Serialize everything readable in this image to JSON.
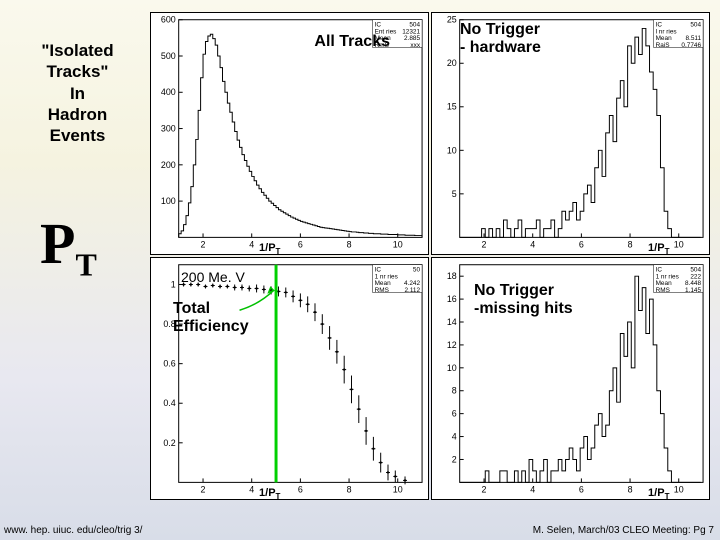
{
  "leftText": {
    "l1": "\"Isolated",
    "l2": "Tracks\"",
    "l3": "In",
    "l4": "Hadron",
    "l5": "Events"
  },
  "ptLabel": {
    "main": "P",
    "sub": "T"
  },
  "footer": {
    "left": "www. hep. uiuc. edu/cleo/trig 3/",
    "right": "M. Selen, March/03 CLEO Meeting: Pg 7"
  },
  "axisLabel": {
    "text": "1/P",
    "sub": "T"
  },
  "annotations": {
    "tl": "All Tracks",
    "tr_l1": "No Trigger",
    "tr_l2": "- hardware",
    "bl_top": "200 Me. V",
    "bl_l1": "Total",
    "bl_l2": "Efficiency",
    "br_l1": "No Trigger",
    "br_l2": "-missing hits"
  },
  "plotTL": {
    "type": "histogram",
    "xlim": [
      1,
      11
    ],
    "ylim": [
      0,
      600
    ],
    "xticks": [
      2,
      4,
      6,
      8,
      10
    ],
    "yticks": [
      100,
      200,
      300,
      400,
      500,
      600
    ],
    "bg": "#ffffff",
    "line": "#000000",
    "binWidth": 0.1,
    "values": [
      10,
      18,
      35,
      60,
      95,
      140,
      200,
      270,
      350,
      440,
      505,
      540,
      555,
      560,
      548,
      530,
      500,
      468,
      430,
      400,
      370,
      345,
      318,
      292,
      268,
      248,
      228,
      212,
      196,
      182,
      168,
      156,
      144,
      134,
      124,
      116,
      108,
      100,
      94,
      88,
      82,
      76,
      72,
      68,
      64,
      60,
      56,
      53,
      50,
      47,
      44,
      42,
      40,
      38,
      36,
      34,
      32,
      30,
      28,
      27,
      26,
      25,
      24,
      23,
      22,
      21,
      20,
      19,
      18,
      17,
      16,
      15,
      15,
      14,
      13,
      13,
      12,
      12,
      11,
      11,
      10,
      10,
      10,
      9,
      9,
      9,
      8,
      8,
      8,
      8,
      7,
      7,
      7,
      6,
      6,
      6,
      6,
      5,
      5,
      5
    ],
    "stats": [
      "IC",
      "504",
      "Ent ries",
      "12321",
      "Mean",
      "2.885",
      "RmS",
      "xxx"
    ]
  },
  "plotTR": {
    "type": "histogram",
    "xlim": [
      1,
      11
    ],
    "ylim": [
      0,
      25
    ],
    "xticks": [
      2,
      4,
      6,
      8,
      10
    ],
    "yticks": [
      5,
      10,
      15,
      20,
      25
    ],
    "bg": "#ffffff",
    "line": "#000000",
    "binWidth": 0.15,
    "values": [
      0,
      0,
      0,
      0,
      0,
      0,
      1,
      0,
      1,
      0,
      1,
      0,
      2,
      1,
      0,
      1,
      2,
      0,
      1,
      1,
      1,
      2,
      0,
      1,
      1,
      2,
      0,
      1,
      3,
      2,
      3,
      4,
      2,
      3,
      5,
      6,
      4,
      8,
      10,
      7,
      12,
      14,
      11,
      16,
      18,
      15,
      22,
      20,
      23,
      21,
      24,
      22,
      19,
      17,
      14,
      8,
      3,
      1,
      0,
      0,
      0,
      0,
      0,
      0,
      0,
      0
    ],
    "stats": [
      "IC",
      "504",
      "l nr ries",
      "",
      "Mean",
      "8.511",
      "RaiS",
      "0.7746"
    ]
  },
  "plotBL": {
    "type": "efficiency",
    "xlim": [
      1,
      11
    ],
    "ylim": [
      0,
      1.1
    ],
    "xticks": [
      2,
      4,
      6,
      8,
      10
    ],
    "yticks": [
      0.2,
      0.4,
      0.6,
      0.8,
      1
    ],
    "bg": "#ffffff",
    "line": "#000000",
    "vlineX": 5.0,
    "vlineColor": "#00d000",
    "points": [
      {
        "x": 1.2,
        "y": 1.0,
        "e": 0.01
      },
      {
        "x": 1.5,
        "y": 1.0,
        "e": 0.01
      },
      {
        "x": 1.8,
        "y": 1.0,
        "e": 0.01
      },
      {
        "x": 2.1,
        "y": 0.99,
        "e": 0.01
      },
      {
        "x": 2.4,
        "y": 0.995,
        "e": 0.01
      },
      {
        "x": 2.7,
        "y": 0.99,
        "e": 0.01
      },
      {
        "x": 3.0,
        "y": 0.99,
        "e": 0.01
      },
      {
        "x": 3.3,
        "y": 0.985,
        "e": 0.015
      },
      {
        "x": 3.6,
        "y": 0.985,
        "e": 0.015
      },
      {
        "x": 3.9,
        "y": 0.98,
        "e": 0.015
      },
      {
        "x": 4.2,
        "y": 0.98,
        "e": 0.02
      },
      {
        "x": 4.5,
        "y": 0.975,
        "e": 0.02
      },
      {
        "x": 4.8,
        "y": 0.97,
        "e": 0.02
      },
      {
        "x": 5.1,
        "y": 0.965,
        "e": 0.025
      },
      {
        "x": 5.4,
        "y": 0.96,
        "e": 0.025
      },
      {
        "x": 5.7,
        "y": 0.94,
        "e": 0.03
      },
      {
        "x": 6.0,
        "y": 0.92,
        "e": 0.035
      },
      {
        "x": 6.3,
        "y": 0.9,
        "e": 0.04
      },
      {
        "x": 6.6,
        "y": 0.86,
        "e": 0.045
      },
      {
        "x": 6.9,
        "y": 0.8,
        "e": 0.05
      },
      {
        "x": 7.2,
        "y": 0.73,
        "e": 0.06
      },
      {
        "x": 7.5,
        "y": 0.66,
        "e": 0.06
      },
      {
        "x": 7.8,
        "y": 0.57,
        "e": 0.07
      },
      {
        "x": 8.1,
        "y": 0.47,
        "e": 0.07
      },
      {
        "x": 8.4,
        "y": 0.37,
        "e": 0.07
      },
      {
        "x": 8.7,
        "y": 0.26,
        "e": 0.07
      },
      {
        "x": 9.0,
        "y": 0.17,
        "e": 0.06
      },
      {
        "x": 9.3,
        "y": 0.1,
        "e": 0.05
      },
      {
        "x": 9.6,
        "y": 0.05,
        "e": 0.04
      },
      {
        "x": 9.9,
        "y": 0.03,
        "e": 0.03
      },
      {
        "x": 10.3,
        "y": 0.01,
        "e": 0.02
      }
    ],
    "stats": [
      "IC",
      "50",
      "1 nr ries",
      "",
      "Mean",
      "4.242",
      "RMS",
      "2.112"
    ]
  },
  "plotBR": {
    "type": "histogram",
    "xlim": [
      1,
      11
    ],
    "ylim": [
      0,
      19
    ],
    "xticks": [
      2,
      4,
      6,
      8,
      10
    ],
    "yticks": [
      2,
      4,
      6,
      8,
      10,
      12,
      14,
      16,
      18
    ],
    "bg": "#ffffff",
    "line": "#000000",
    "binWidth": 0.15,
    "values": [
      0,
      0,
      0,
      0,
      0,
      0,
      0,
      1,
      0,
      0,
      0,
      1,
      1,
      0,
      0,
      1,
      0,
      1,
      0,
      2,
      1,
      0,
      1,
      2,
      0,
      1,
      1,
      2,
      1,
      2,
      3,
      2,
      1,
      3,
      4,
      2,
      3,
      5,
      6,
      4,
      5,
      8,
      10,
      7,
      13,
      11,
      14,
      10,
      18,
      15,
      17,
      13,
      16,
      12,
      8,
      6,
      3,
      1,
      0,
      0,
      0,
      0,
      0,
      0,
      0,
      0
    ],
    "stats": [
      "IC",
      "504",
      "1 nr ries",
      "222",
      "Mean",
      "8.448",
      "RMS",
      "1.145"
    ]
  }
}
